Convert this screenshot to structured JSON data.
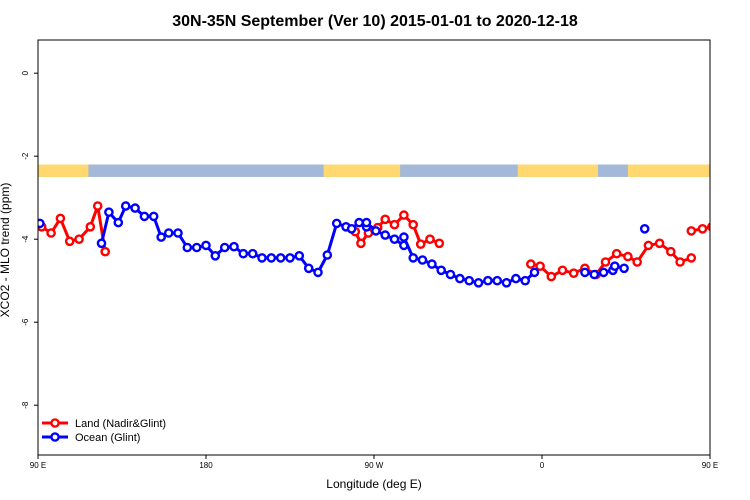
{
  "chart_data": {
    "type": "line",
    "title": "30N-35N September (Ver 10)   2015-01-01 to 2020-12-18",
    "xlabel": "Longitude (deg E)",
    "ylabel": "XCO2 - MLO trend (ppm)",
    "xlim": [
      90,
      450
    ],
    "ylim": [
      -9.2,
      0.8
    ],
    "x_ticks": [
      {
        "value": 90,
        "label": "90 E"
      },
      {
        "value": 180,
        "label": "180"
      },
      {
        "value": 270,
        "label": "90 W"
      },
      {
        "value": 360,
        "label": "0"
      },
      {
        "value": 450,
        "label": "90 E"
      },
      {
        "value": 540,
        "label": "180"
      }
    ],
    "y_ticks": [
      {
        "value": 0,
        "label": "0"
      },
      {
        "value": -2,
        "label": "-2"
      },
      {
        "value": -4,
        "label": "-4"
      },
      {
        "value": -6,
        "label": "-6"
      },
      {
        "value": -8,
        "label": "-8"
      }
    ],
    "land_mask_band": {
      "y_top": -2.2,
      "y_bottom": -2.5,
      "land_color": "#FFD870",
      "ocean_color": "#A4B8D8",
      "land_ranges": [
        [
          90,
          117
        ],
        [
          243,
          284
        ],
        [
          347,
          390
        ],
        [
          406,
          474
        ],
        [
          490,
          540
        ]
      ]
    },
    "series": [
      {
        "name": "Land (Nadir&Glint)",
        "color": "#FF0000",
        "x": [
          92,
          97,
          102,
          107,
          112,
          118,
          120,
          123,
          137,
          143,
          150,
          153,
          157,
          162
        ],
        "y": [
          -3.7,
          -3.85,
          -3.5,
          -4.05,
          -4.0,
          -3.7,
          -3.2,
          -3.45,
          -3.7,
          -4.25,
          -3.55,
          -3.5,
          -3.8,
          -3.6
        ],
        "segments": [
          {
            "x": [
              88,
              92,
              97,
              102,
              107,
              112,
              118,
              122,
              126
            ],
            "y": [
              -3.6,
              -3.7,
              -3.85,
              -3.5,
              -4.05,
              -4.0,
              -3.7,
              -3.2,
              -4.3
            ]
          },
          {
            "x": [
              260,
              263,
              267,
              272,
              276,
              281,
              286,
              291,
              295,
              300,
              305
            ],
            "y": [
              -3.82,
              -4.1,
              -3.85,
              -3.72,
              -3.52,
              -3.65,
              -3.42,
              -3.65,
              -4.12,
              -4.0,
              -4.1
            ]
          },
          {
            "x": [
              354,
              359,
              365,
              371,
              377,
              383,
              389,
              394,
              400,
              406,
              411,
              417,
              423,
              429,
              434,
              440
            ],
            "y": [
              -4.6,
              -4.65,
              -4.9,
              -4.75,
              -4.82,
              -4.7,
              -4.85,
              -4.55,
              -4.35,
              -4.42,
              -4.55,
              -4.15,
              -4.1,
              -4.3,
              -4.55,
              -4.45
            ]
          },
          {
            "x": [
              440,
              446,
              451,
              457,
              463,
              468,
              474,
              479,
              484,
              489,
              494,
              499,
              504
            ],
            "y": [
              -3.8,
              -3.75,
              -3.7,
              -3.8,
              -3.75,
              -3.5,
              -4.0,
              -4.0,
              -3.75,
              -3.2,
              -4.25,
              -3.55,
              -3.5
            ]
          }
        ]
      },
      {
        "name": "Ocean (Glint)",
        "color": "#0000FF",
        "segments": [
          {
            "x": [
              88,
              91
            ],
            "y": [
              -3.6,
              -3.62
            ]
          },
          {
            "x": [
              124,
              128,
              133,
              137,
              142,
              147,
              152,
              156,
              160,
              165,
              170,
              175,
              180,
              185,
              190,
              195,
              200,
              205,
              210,
              215,
              220,
              225,
              230,
              235,
              240,
              245,
              250,
              255,
              258,
              262,
              266
            ],
            "y": [
              -4.1,
              -3.35,
              -3.6,
              -3.2,
              -3.25,
              -3.45,
              -3.45,
              -3.95,
              -3.85,
              -3.85,
              -4.2,
              -4.2,
              -4.15,
              -4.4,
              -4.2,
              -4.18,
              -4.35,
              -4.35,
              -4.45,
              -4.45,
              -4.45,
              -4.45,
              -4.4,
              -4.7,
              -4.8,
              -4.38,
              -3.62,
              -3.7,
              -3.75,
              -3.6,
              -3.7
            ]
          },
          {
            "x": [
              266,
              271,
              276,
              281,
              286
            ],
            "y": [
              -3.6,
              -3.8,
              -3.9,
              -4.0,
              -4.15
            ]
          },
          {
            "x": [
              286,
              291,
              296,
              301,
              306,
              311,
              316,
              321,
              326,
              331,
              336,
              341,
              346,
              351,
              356
            ],
            "y": [
              -3.95,
              -4.45,
              -4.5,
              -4.6,
              -4.75,
              -4.85,
              -4.95,
              -5.0,
              -5.05,
              -5.0,
              -5.0,
              -5.05,
              -4.95,
              -5.0,
              -4.8
            ]
          },
          {
            "x": [
              383,
              388,
              393,
              398
            ],
            "y": [
              -4.8,
              -4.85,
              -4.8,
              -4.75
            ]
          },
          {
            "x": [
              399,
              404
            ],
            "y": [
              -4.65,
              -4.7
            ]
          },
          {
            "x": [
              415
            ],
            "y": [
              -3.75
            ]
          },
          {
            "x": [
              460,
              463
            ],
            "y": [
              -4.15,
              -3.62
            ]
          },
          {
            "x": [
              483,
              488,
              493,
              498,
              503,
              508,
              513,
              518,
              523,
              528,
              533,
              538,
              543,
              548
            ],
            "y": [
              -4.1,
              -3.35,
              -3.6,
              -3.2,
              -3.25,
              -3.45,
              -3.45,
              -3.95,
              -3.85,
              -3.85,
              -4.2,
              -4.2,
              -4.15,
              -4.15
            ]
          }
        ]
      }
    ],
    "legend": {
      "placement": "bottom-left",
      "entries": [
        {
          "label": "Land (Nadir&Glint)",
          "color": "#FF0000"
        },
        {
          "label": "Ocean (Glint)",
          "color": "#0000FF"
        }
      ]
    }
  }
}
